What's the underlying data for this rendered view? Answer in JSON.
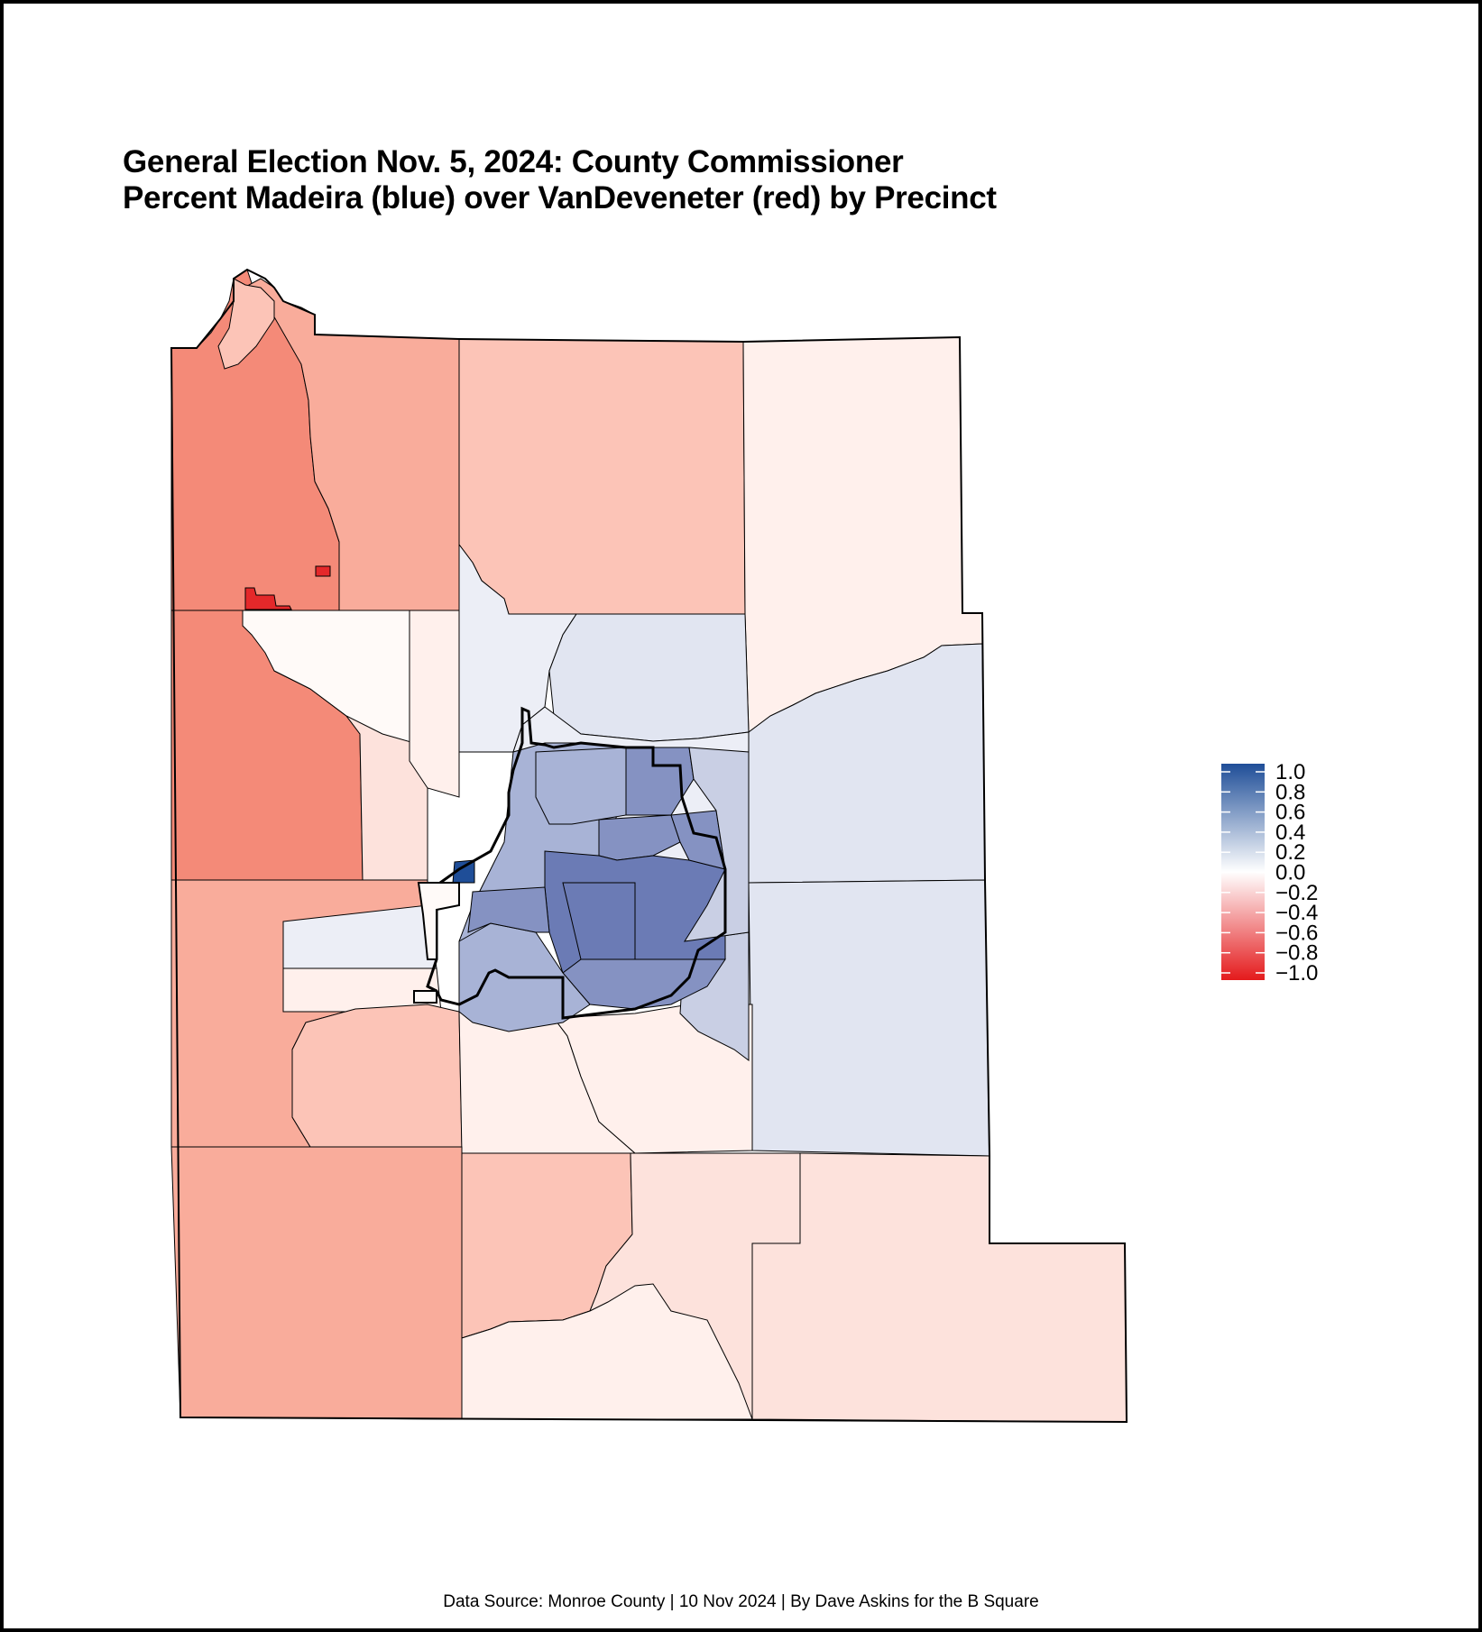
{
  "title": {
    "line1": "General Election Nov. 5, 2024: County Commissioner",
    "line2": "Percent Madeira (blue) over VanDeveneter (red) by Precinct"
  },
  "footer": "Data Source: Monroe County | 10 Nov 2024 | By Dave Askins for the B Square",
  "legend": {
    "labels": [
      "1.0",
      "0.8",
      "0.6",
      "0.4",
      "0.2",
      "0.0",
      "−0.2",
      "−0.4",
      "−0.6",
      "−0.8",
      "−1.0"
    ],
    "scale_min": -1.0,
    "scale_max": 1.0,
    "colors": {
      "max": "#1f4e98",
      "mid": "#ffffff",
      "min": "#e41a1c"
    }
  },
  "map": {
    "colors": {
      "deep_red": "#e4282a",
      "red": "#f48a78",
      "salmon": "#f9ac9b",
      "light_salmon": "#fcc4b7",
      "pink": "#fde2dc",
      "pale_pink": "#fff0ec",
      "off_white": "#fffaf8",
      "pale_blue": "#eceef6",
      "light_blue": "#e1e5f1",
      "mid_light_blue": "#c9cfe4",
      "mid_blue": "#a8b3d6",
      "blue": "#8592c2",
      "dark_blue": "#6b7bb5",
      "deep_blue": "#1f4e98"
    }
  }
}
